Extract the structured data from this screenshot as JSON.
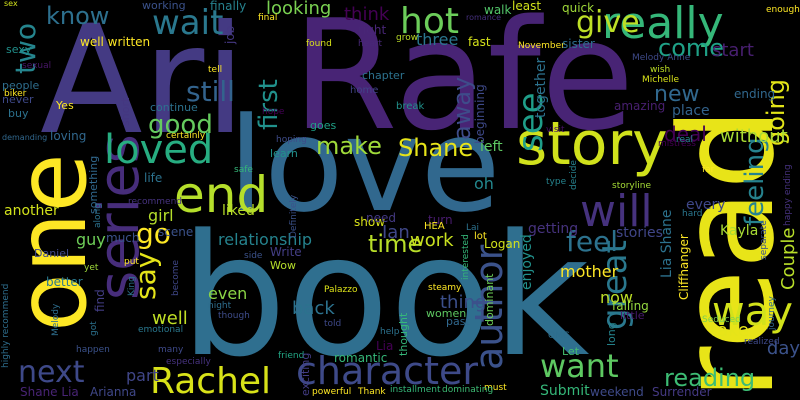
{
  "words": [
    {
      "text": "book",
      "color": "#2f6f8f"
    },
    {
      "text": "Rafe",
      "color": "#482475"
    },
    {
      "text": "Ari",
      "color": "#443a83"
    },
    {
      "text": "love",
      "color": "#31688e"
    },
    {
      "text": "read",
      "color": "#e8e418"
    },
    {
      "text": "one",
      "color": "#fde725"
    },
    {
      "text": "story",
      "color": "#d0e11c"
    },
    {
      "text": "series",
      "color": "#472d7b"
    },
    {
      "text": "really",
      "color": "#35b779"
    },
    {
      "text": "end",
      "color": "#b5de2b"
    },
    {
      "text": "loved",
      "color": "#27ad81"
    },
    {
      "text": "will",
      "color": "#46327e"
    },
    {
      "text": "character",
      "color": "#3e4a89"
    },
    {
      "text": "Rachel",
      "color": "#d8e219"
    },
    {
      "text": "way",
      "color": "#d2e21b"
    },
    {
      "text": "hot",
      "color": "#6ccd5a"
    },
    {
      "text": "wait",
      "color": "#2a788e"
    },
    {
      "text": "author",
      "color": "#3b528b"
    },
    {
      "text": "want",
      "color": "#5ec962"
    },
    {
      "text": "next",
      "color": "#3e4989"
    },
    {
      "text": "great",
      "color": "#2a788e"
    },
    {
      "text": "give",
      "color": "#bddf26"
    },
    {
      "text": "still",
      "color": "#33638d"
    },
    {
      "text": "say",
      "color": "#e5e419"
    },
    {
      "text": "make",
      "color": "#9fda3a"
    },
    {
      "text": "Shane",
      "color": "#e7e419"
    },
    {
      "text": "see",
      "color": "#1f9e89"
    },
    {
      "text": "feel",
      "color": "#2c728e"
    },
    {
      "text": "time",
      "color": "#b8de29"
    },
    {
      "text": "come",
      "color": "#1fa187"
    },
    {
      "text": "new",
      "color": "#31688e"
    },
    {
      "text": "feeling",
      "color": "#26828e"
    },
    {
      "text": "going",
      "color": "#e2e418"
    },
    {
      "text": "reading",
      "color": "#3dbc74"
    },
    {
      "text": "first",
      "color": "#21918c"
    },
    {
      "text": "good",
      "color": "#65cb5e"
    },
    {
      "text": "two",
      "color": "#25858e"
    },
    {
      "text": "away",
      "color": "#3e4c8a"
    },
    {
      "text": "go",
      "color": "#fde725"
    },
    {
      "text": "know",
      "color": "#2d708e"
    },
    {
      "text": "think",
      "color": "#440154"
    },
    {
      "text": "deal",
      "color": "#440154"
    },
    {
      "text": "work",
      "color": "#c8e020"
    },
    {
      "text": "relationship",
      "color": "#25838e"
    },
    {
      "text": "start",
      "color": "#481f70"
    },
    {
      "text": "take",
      "color": "#e5e419"
    },
    {
      "text": "well",
      "color": "#c0df25"
    },
    {
      "text": "looking",
      "color": "#7ad151"
    },
    {
      "text": "three",
      "color": "#2a768e"
    },
    {
      "text": "Ian",
      "color": "#3f4788"
    },
    {
      "text": "another",
      "color": "#d2e21b"
    },
    {
      "text": "part",
      "color": "#404688"
    },
    {
      "text": "back",
      "color": "#2c728e"
    },
    {
      "text": "thing",
      "color": "#3c508b"
    },
    {
      "text": "even",
      "color": "#8bd646"
    },
    {
      "text": "now",
      "color": "#bddf26"
    },
    {
      "text": "day",
      "color": "#3b528b"
    },
    {
      "text": "without",
      "color": "#a8db34"
    },
    {
      "text": "place",
      "color": "#33638d"
    },
    {
      "text": "ending",
      "color": "#31688e"
    },
    {
      "text": "Couple",
      "color": "#b8de29"
    },
    {
      "text": "Kayla",
      "color": "#a8db34"
    },
    {
      "text": "Lia Shane",
      "color": "#2c728e"
    },
    {
      "text": "Shane Lia",
      "color": "#482475"
    },
    {
      "text": "Arianna",
      "color": "#3f4788"
    },
    {
      "text": "Submit",
      "color": "#35b779"
    },
    {
      "text": "weekend",
      "color": "#3e4a89"
    },
    {
      "text": "Surrender",
      "color": "#443983"
    },
    {
      "text": "guy",
      "color": "#6ece58"
    },
    {
      "text": "girl",
      "color": "#b5de2b"
    },
    {
      "text": "mother",
      "color": "#fde725"
    },
    {
      "text": "liked",
      "color": "#b8de29"
    },
    {
      "text": "stories",
      "color": "#404688"
    },
    {
      "text": "every",
      "color": "#3f4889"
    },
    {
      "text": "getting",
      "color": "#46327e"
    },
    {
      "text": "enjoyed",
      "color": "#21918c"
    },
    {
      "text": "scene",
      "color": "#3b528b"
    },
    {
      "text": "much",
      "color": "#3b528b"
    },
    {
      "text": "life",
      "color": "#2c728e"
    },
    {
      "text": "show",
      "color": "#d8e219"
    },
    {
      "text": "need",
      "color": "#443983"
    },
    {
      "text": "turn",
      "color": "#481b6d"
    },
    {
      "text": "Logan",
      "color": "#d2e21b"
    },
    {
      "text": "HEA",
      "color": "#fde725"
    },
    {
      "text": "lot",
      "color": "#fde725"
    },
    {
      "text": "left",
      "color": "#5ec962"
    },
    {
      "text": "together",
      "color": "#2c728e"
    },
    {
      "text": "beginning",
      "color": "#3e4989"
    },
    {
      "text": "oh",
      "color": "#23888e"
    },
    {
      "text": "amazing",
      "color": "#481f70"
    },
    {
      "text": "continue",
      "color": "#2c728e"
    },
    {
      "text": "short",
      "color": "#453781"
    },
    {
      "text": "chapter",
      "color": "#2c728e"
    },
    {
      "text": "break",
      "color": "#21918c"
    },
    {
      "text": "home",
      "color": "#414287"
    },
    {
      "text": "visit",
      "color": "#471063"
    },
    {
      "text": "fast",
      "color": "#d5e21a"
    },
    {
      "text": "grow",
      "color": "#bade28"
    },
    {
      "text": "heart",
      "color": "#482878"
    },
    {
      "text": "found",
      "color": "#d8e219"
    },
    {
      "text": "right",
      "color": "#482677"
    },
    {
      "text": "job",
      "color": "#453882"
    },
    {
      "text": "finally",
      "color": "#26828e"
    },
    {
      "text": "final",
      "color": "#fde725"
    },
    {
      "text": "walk",
      "color": "#52c569"
    },
    {
      "text": "least",
      "color": "#d2e21b"
    },
    {
      "text": "romance",
      "color": "#46307e"
    },
    {
      "text": "quick",
      "color": "#a0da39"
    },
    {
      "text": "enough",
      "color": "#fde725"
    },
    {
      "text": "November",
      "color": "#fde725"
    },
    {
      "text": "sister",
      "color": "#2e6e8e"
    },
    {
      "text": "wish",
      "color": "#bddf26"
    },
    {
      "text": "Melody Anne",
      "color": "#3e4a89"
    },
    {
      "text": "Michelle",
      "color": "#d8e219"
    },
    {
      "text": "mistress",
      "color": "#440154"
    },
    {
      "text": "real",
      "color": "#23888e"
    },
    {
      "text": "far",
      "color": "#fde725"
    },
    {
      "text": "happy ending",
      "color": "#46327e"
    },
    {
      "text": "separate",
      "color": "#3b528b"
    },
    {
      "text": "Seduced",
      "color": "#7ad151"
    },
    {
      "text": "journey",
      "color": "#31688e"
    },
    {
      "text": "realized",
      "color": "#3e4989"
    },
    {
      "text": "hard",
      "color": "#2a768e"
    },
    {
      "text": "storyline",
      "color": "#a5db36"
    },
    {
      "text": "type",
      "color": "#25848e"
    },
    {
      "text": "decide",
      "color": "#26828e"
    },
    {
      "text": "interested",
      "color": "#35b779"
    },
    {
      "text": "Lai",
      "color": "#2c728e"
    },
    {
      "text": "Cliffhanger",
      "color": "#fde725"
    },
    {
      "text": "OMG",
      "color": "#2e6e8e"
    },
    {
      "text": "little",
      "color": "#481b6d"
    },
    {
      "text": "falling",
      "color": "#95d840"
    },
    {
      "text": "long",
      "color": "#25858e"
    },
    {
      "text": "Let",
      "color": "#44bf70"
    },
    {
      "text": "past",
      "color": "#31688e"
    },
    {
      "text": "women",
      "color": "#5ec962"
    },
    {
      "text": "steamy",
      "color": "#fde725"
    },
    {
      "text": "thought",
      "color": "#35b779"
    },
    {
      "text": "dominant",
      "color": "#6ece58"
    },
    {
      "text": "help",
      "color": "#2c728e"
    },
    {
      "text": "must",
      "color": "#fde725"
    },
    {
      "text": "installment",
      "color": "#35b779"
    },
    {
      "text": "dominating",
      "color": "#3dbc74"
    },
    {
      "text": "Thank",
      "color": "#fde725"
    },
    {
      "text": "powerful",
      "color": "#fde725"
    },
    {
      "text": "Lia",
      "color": "#440154"
    },
    {
      "text": "romantic",
      "color": "#35b779"
    },
    {
      "text": "told",
      "color": "#3e4989"
    },
    {
      "text": "friend",
      "color": "#22a785"
    },
    {
      "text": "Palazzo",
      "color": "#dde318"
    },
    {
      "text": "exciting",
      "color": "#433d84"
    },
    {
      "text": "Definitely",
      "color": "#3b528b"
    },
    {
      "text": "learn",
      "color": "#21918c"
    },
    {
      "text": "goes",
      "color": "#1fa187"
    },
    {
      "text": "hoping",
      "color": "#3e4c8a"
    },
    {
      "text": "Wow",
      "color": "#b5de2b"
    },
    {
      "text": "Write",
      "color": "#433e85"
    },
    {
      "text": "side",
      "color": "#3b528b"
    },
    {
      "text": "night",
      "color": "#2e6e8e"
    },
    {
      "text": "though",
      "color": "#3e4c8a"
    },
    {
      "text": "especially",
      "color": "#46327e"
    },
    {
      "text": "many",
      "color": "#3e4989"
    },
    {
      "text": "become",
      "color": "#3f4788"
    },
    {
      "text": "King",
      "color": "#2c728e"
    },
    {
      "text": "put",
      "color": "#fde725"
    },
    {
      "text": "emotional",
      "color": "#2a788e"
    },
    {
      "text": "happen",
      "color": "#3b528b"
    },
    {
      "text": "got",
      "color": "#2c728e"
    },
    {
      "text": "find",
      "color": "#433e85"
    },
    {
      "text": "better",
      "color": "#2a788e"
    },
    {
      "text": "yet",
      "color": "#9fda3a"
    },
    {
      "text": "recommend",
      "color": "#46337f"
    },
    {
      "text": "along",
      "color": "#2c728e"
    },
    {
      "text": "Daniel",
      "color": "#3f4788"
    },
    {
      "text": "Melody",
      "color": "#2e6e8e"
    },
    {
      "text": "highly recommend",
      "color": "#2e6e8e"
    },
    {
      "text": "something",
      "color": "#31688e"
    },
    {
      "text": "safe",
      "color": "#35b779"
    },
    {
      "text": "certainly",
      "color": "#fde725"
    },
    {
      "text": "hope",
      "color": "#440154"
    },
    {
      "text": "sexual",
      "color": "#481769"
    },
    {
      "text": "people",
      "color": "#2e6e8e"
    },
    {
      "text": "never",
      "color": "#3e4989"
    },
    {
      "text": "Yes",
      "color": "#fde725"
    },
    {
      "text": "buy",
      "color": "#2c728e"
    },
    {
      "text": "demanding",
      "color": "#31688e"
    },
    {
      "text": "loving",
      "color": "#31688e"
    },
    {
      "text": "biker",
      "color": "#fde725"
    },
    {
      "text": "sexy",
      "color": "#21918c"
    },
    {
      "text": "sex",
      "color": "#d2e21b"
    },
    {
      "text": "well written",
      "color": "#fde725"
    },
    {
      "text": "working",
      "color": "#3b528b"
    },
    {
      "text": "tell",
      "color": "#fde725"
    }
  ]
}
